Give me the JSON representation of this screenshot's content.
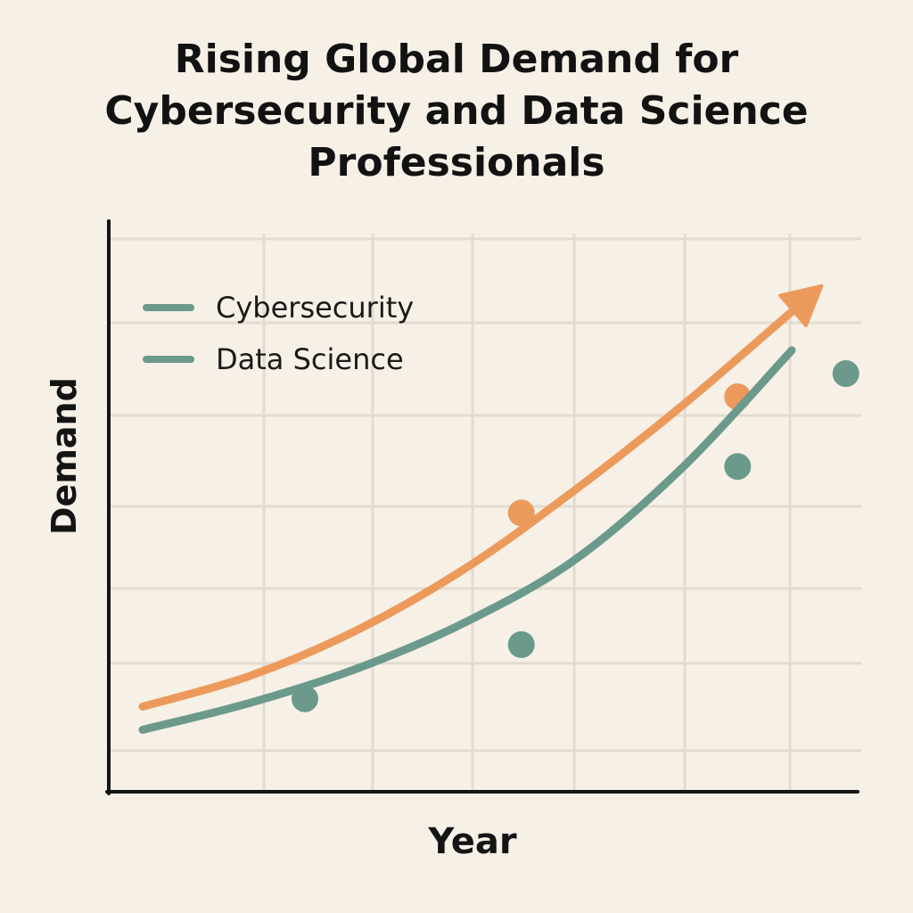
{
  "chart_data": {
    "type": "line",
    "title": [
      "Rising Global Demand for",
      "Cybersecurity and Data Science",
      "Professionals"
    ],
    "xlabel": "Year",
    "ylabel": "Demand",
    "x": [
      0,
      1,
      2,
      3,
      4,
      5,
      6
    ],
    "xlim": [
      0,
      6.8
    ],
    "ylim": [
      0,
      7
    ],
    "grid": true,
    "legend_position": "top-left",
    "series": [
      {
        "name": "Cybersecurity",
        "legend_color": "#6b9a8c",
        "line_color": "#ec9a5c",
        "values": [
          1.1,
          1.5,
          2.1,
          2.9,
          3.9,
          5.0,
          6.2
        ],
        "markers": [
          [
            3.5,
            3.6
          ],
          [
            5.5,
            5.1
          ]
        ],
        "end_arrow": true
      },
      {
        "name": "Data Science",
        "legend_color": "#6b9a8c",
        "line_color": "#6b9a8c",
        "values": [
          0.8,
          1.15,
          1.6,
          2.2,
          3.0,
          4.2,
          5.7
        ],
        "markers": [
          [
            1.5,
            1.2
          ],
          [
            3.5,
            1.9
          ],
          [
            5.5,
            4.2
          ],
          [
            6.5,
            5.4
          ]
        ],
        "end_arrow": false
      }
    ]
  }
}
